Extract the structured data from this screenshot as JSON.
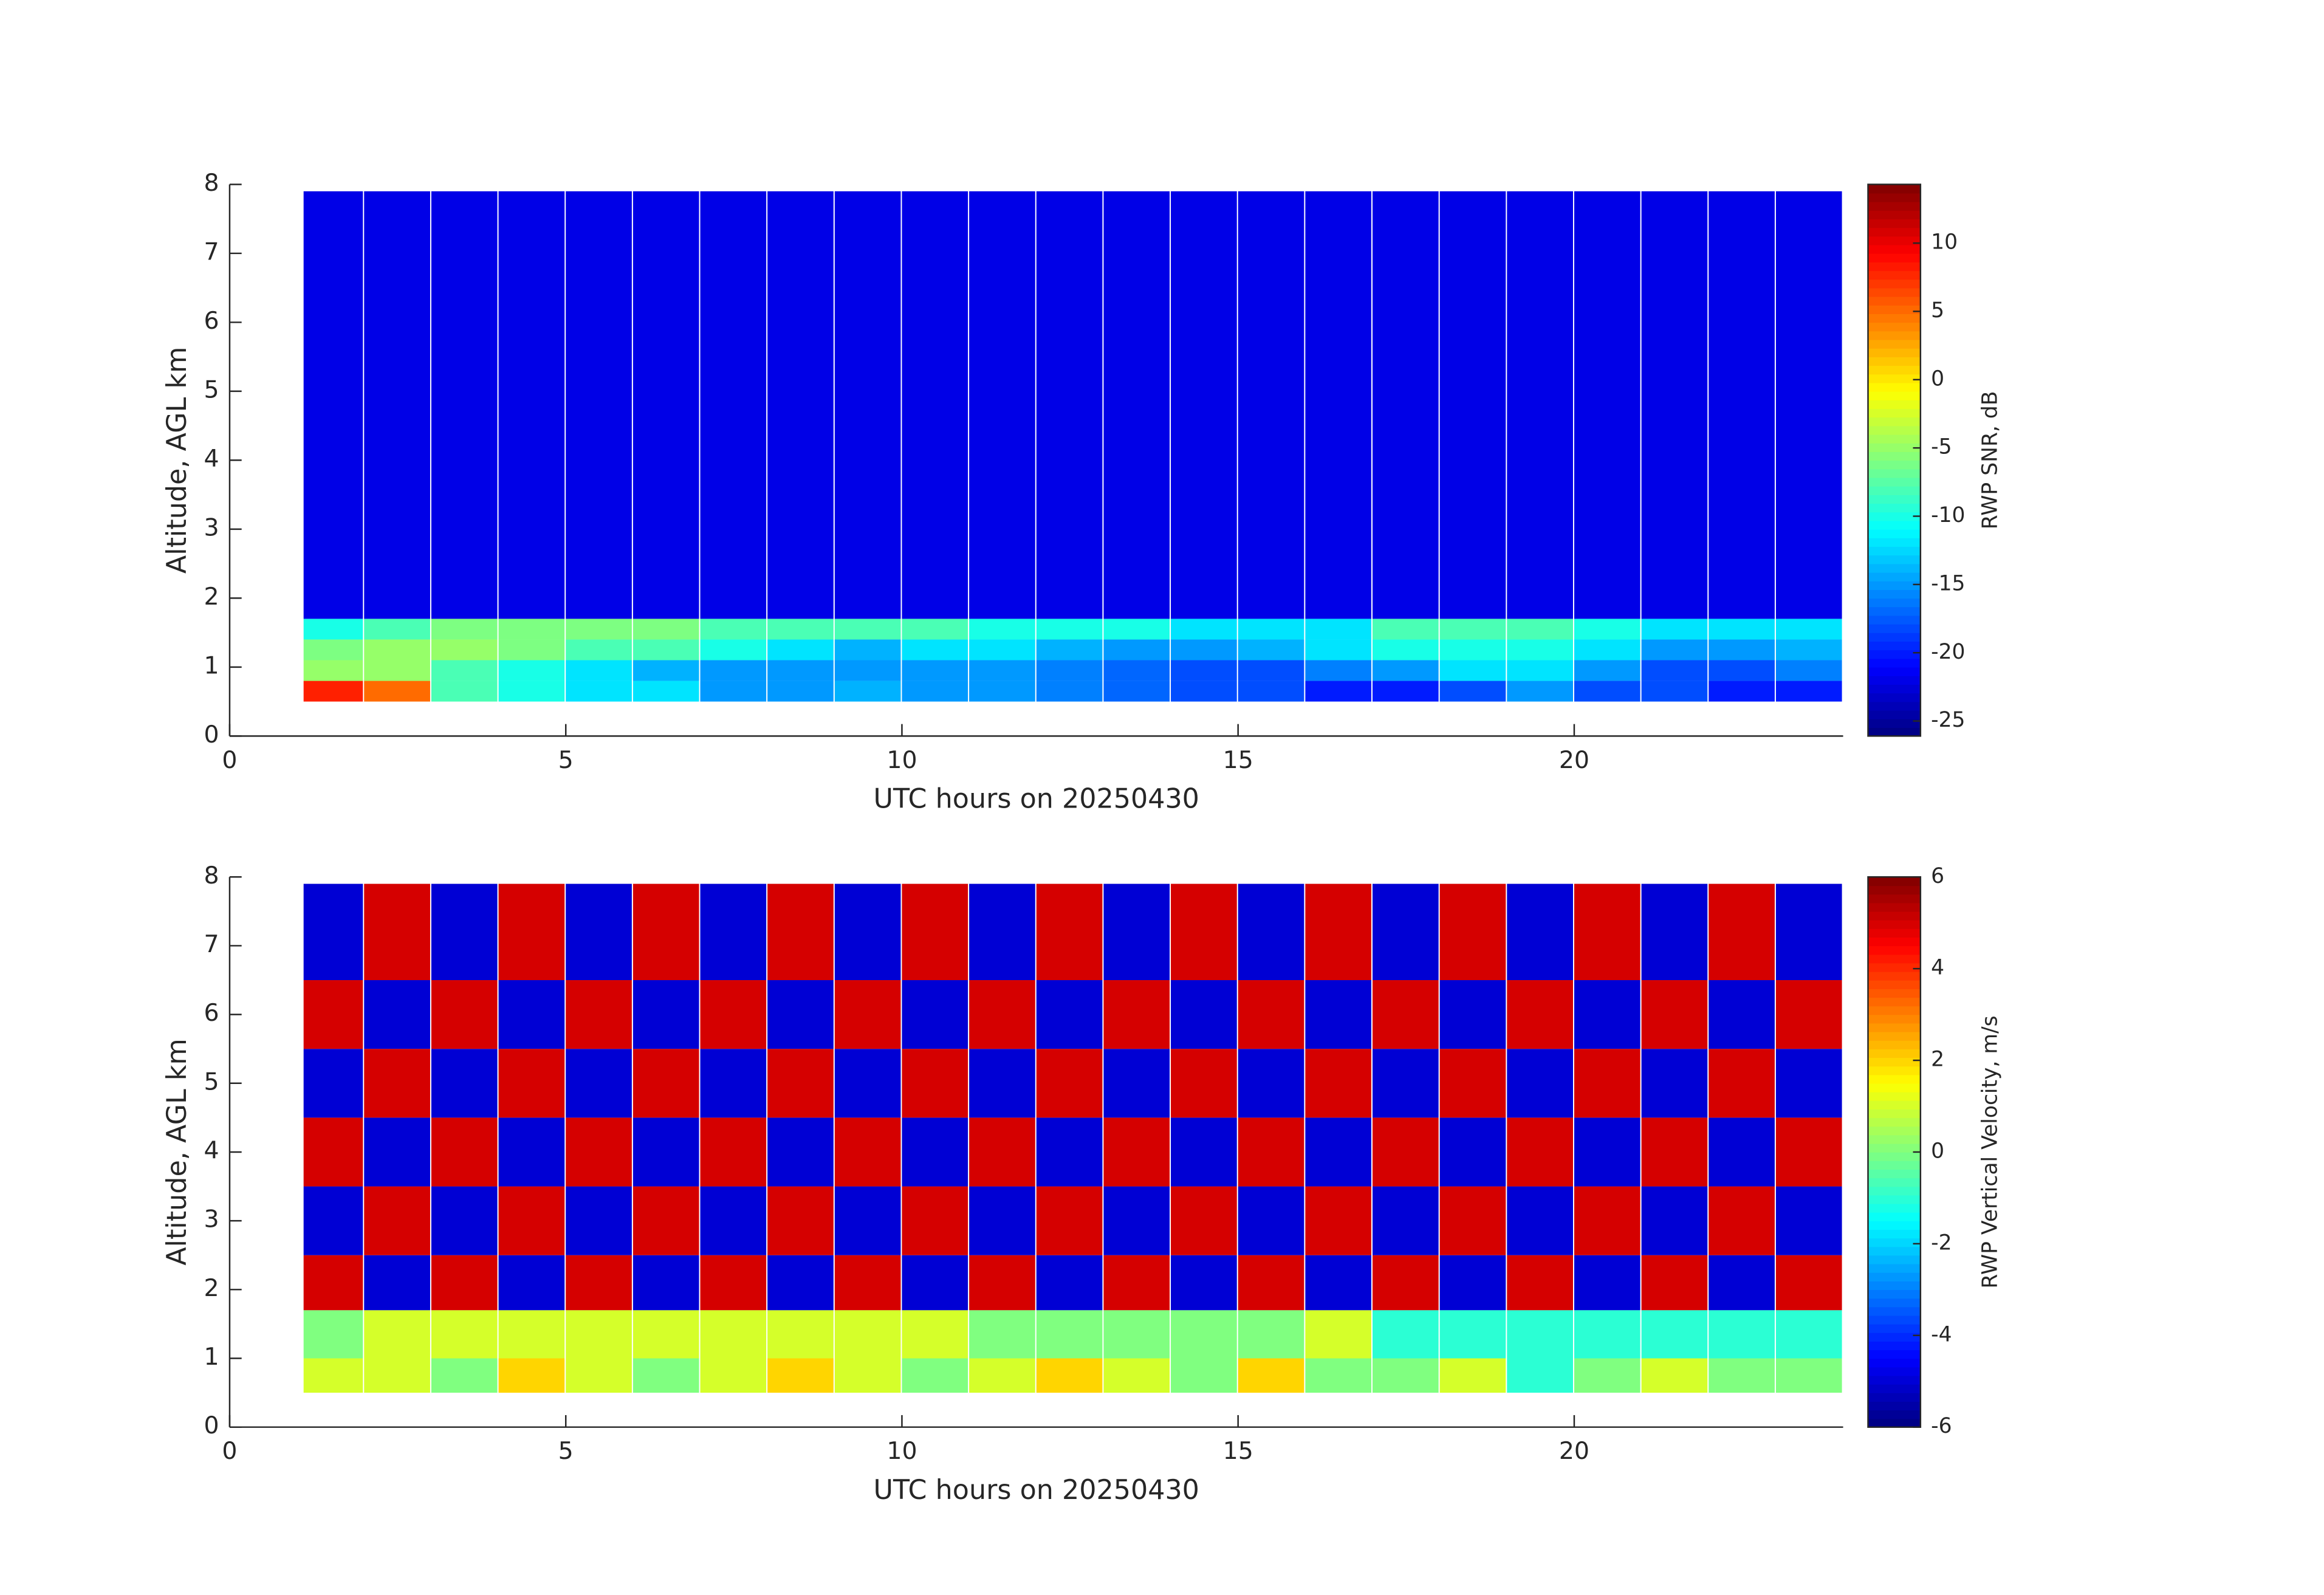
{
  "chart_data": [
    {
      "type": "heatmap",
      "colormap": "jet",
      "xlabel": "UTC hours on 20250430",
      "ylabel": "Altitude, AGL km",
      "colorbar_label": "RWP SNR, dB",
      "xlim": [
        0,
        24
      ],
      "xticks": [
        0,
        5,
        10,
        15,
        20
      ],
      "ylim": [
        0,
        8
      ],
      "yticks": [
        0,
        1,
        2,
        3,
        4,
        5,
        6,
        7,
        8
      ],
      "clim": [
        -26.1,
        14.3
      ],
      "cticks": [
        -25,
        -20,
        -15,
        -10,
        -5,
        0,
        5,
        10
      ],
      "x_edges": [
        1.1,
        2,
        3,
        4,
        5,
        6,
        7,
        8,
        9,
        10,
        11,
        12,
        13,
        14,
        15,
        16,
        17,
        18,
        19,
        20,
        21,
        22,
        23,
        24
      ],
      "y_edges": [
        0.5,
        0.8,
        1.1,
        1.4,
        1.7,
        7.9
      ],
      "z": [
        [
          8,
          5,
          -8,
          -10,
          -12,
          -12,
          -15,
          -15,
          -14,
          -15,
          -15,
          -16,
          -17,
          -18,
          -18,
          -20,
          -20,
          -18,
          -15,
          -18,
          -18,
          -20,
          -20
        ],
        [
          -5,
          -5,
          -8,
          -10,
          -12,
          -14,
          -15,
          -15,
          -15,
          -15,
          -15,
          -16,
          -17,
          -18,
          -18,
          -16,
          -15,
          -12,
          -12,
          -15,
          -18,
          -18,
          -16
        ],
        [
          -6,
          -5,
          -5,
          -6,
          -8,
          -8,
          -10,
          -12,
          -14,
          -12,
          -12,
          -14,
          -15,
          -15,
          -14,
          -12,
          -10,
          -10,
          -10,
          -12,
          -15,
          -15,
          -14
        ],
        [
          -10,
          -8,
          -6,
          -6,
          -6,
          -6,
          -8,
          -8,
          -8,
          -8,
          -10,
          -10,
          -10,
          -12,
          -12,
          -12,
          -8,
          -8,
          -8,
          -10,
          -12,
          -12,
          -12
        ],
        [
          -22,
          -22,
          -22,
          -22,
          -22,
          -22,
          -22,
          -22,
          -22,
          -22,
          -22,
          -22,
          -22,
          -22,
          -22,
          -22,
          -22,
          -22,
          -22,
          -22,
          -22,
          -22,
          -22
        ]
      ]
    },
    {
      "type": "heatmap",
      "colormap": "jet",
      "xlabel": "UTC hours on 20250430",
      "ylabel": "Altitude, AGL km",
      "colorbar_label": "RWP Vertical Velocity, m/s",
      "xlim": [
        0,
        24
      ],
      "xticks": [
        0,
        5,
        10,
        15,
        20
      ],
      "ylim": [
        0,
        8
      ],
      "yticks": [
        0,
        1,
        2,
        3,
        4,
        5,
        6,
        7,
        8
      ],
      "clim": [
        -6,
        6
      ],
      "cticks": [
        -6,
        -4,
        -2,
        0,
        2,
        4,
        6
      ],
      "x_edges": [
        1.1,
        2,
        3,
        4,
        5,
        6,
        7,
        8,
        9,
        10,
        11,
        12,
        13,
        14,
        15,
        16,
        17,
        18,
        19,
        20,
        21,
        22,
        23,
        24
      ],
      "y_edges": [
        0.5,
        1.0,
        1.7,
        2.5,
        3.5,
        4.5,
        5.5,
        6.5,
        7.9
      ],
      "z": [
        [
          1,
          1,
          0,
          2,
          1,
          0,
          1,
          2,
          1,
          0,
          1,
          2,
          1,
          0,
          2,
          0,
          0,
          1,
          -1,
          0,
          1,
          0,
          0
        ],
        [
          0,
          1,
          1,
          1,
          1,
          1,
          1,
          1,
          1,
          1,
          0,
          0,
          0,
          0,
          0,
          1,
          -1,
          -1,
          -1,
          -1,
          -1,
          -1,
          -1
        ],
        [
          5,
          -5,
          5,
          -5,
          5,
          -5,
          5,
          -5,
          5,
          -5,
          5,
          -5,
          5,
          -5,
          5,
          -5,
          5,
          -5,
          5,
          -5,
          5,
          -5,
          5
        ],
        [
          -5,
          5,
          -5,
          5,
          -5,
          5,
          -5,
          5,
          -5,
          5,
          -5,
          5,
          -5,
          5,
          -5,
          5,
          -5,
          5,
          -5,
          5,
          -5,
          5,
          -5
        ],
        [
          5,
          -5,
          5,
          -5,
          5,
          -5,
          5,
          -5,
          5,
          -5,
          5,
          -5,
          5,
          -5,
          5,
          -5,
          5,
          -5,
          5,
          -5,
          5,
          -5,
          5
        ],
        [
          -5,
          5,
          -5,
          5,
          -5,
          5,
          -5,
          5,
          -5,
          5,
          -5,
          5,
          -5,
          5,
          -5,
          5,
          -5,
          5,
          -5,
          5,
          -5,
          5,
          -5
        ],
        [
          5,
          -5,
          5,
          -5,
          5,
          -5,
          5,
          -5,
          5,
          -5,
          5,
          -5,
          5,
          -5,
          5,
          -5,
          5,
          -5,
          5,
          -5,
          5,
          -5,
          5
        ],
        [
          -5,
          5,
          -5,
          5,
          -5,
          5,
          -5,
          5,
          -5,
          5,
          -5,
          5,
          -5,
          5,
          -5,
          5,
          -5,
          5,
          -5,
          5,
          -5,
          5,
          -5
        ]
      ]
    }
  ]
}
